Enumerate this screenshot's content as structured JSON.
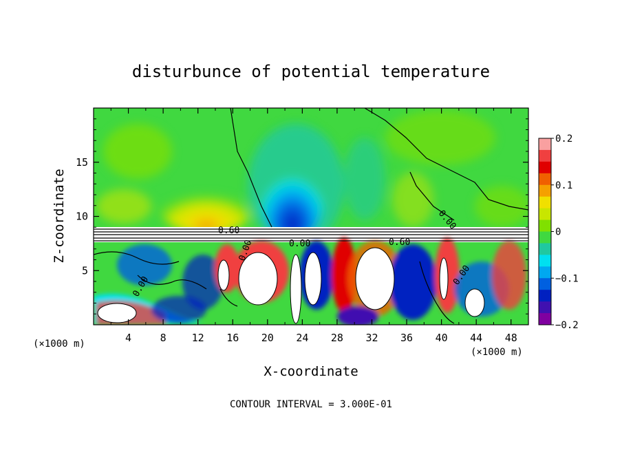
{
  "chart_data": {
    "type": "heatmap",
    "title": "disturbunce of potential temperature",
    "xlabel": "X-coordinate",
    "ylabel": "Z-coordinate",
    "x_unit_left": "(×1000 m)",
    "x_unit_right": "(×1000 m)",
    "xlim": [
      0,
      50
    ],
    "ylim": [
      0,
      20
    ],
    "x_ticks": [
      4,
      8,
      12,
      16,
      20,
      24,
      28,
      32,
      36,
      40,
      44,
      48
    ],
    "y_ticks": [
      5,
      10,
      15
    ],
    "colorbar": {
      "range": [
        -0.2,
        0.2
      ],
      "tick_values": [
        0.2,
        0.1,
        0,
        -0.1,
        -0.2
      ],
      "tick_labels": [
        "0.2",
        "0.1",
        "0",
        "−0.1",
        "−0.2"
      ],
      "colors": [
        "#f9a0a0",
        "#f04040",
        "#e00000",
        "#f06000",
        "#f5a000",
        "#f0e000",
        "#c8e600",
        "#80e000",
        "#40d840",
        "#20c8a0",
        "#00e0f0",
        "#00a8f0",
        "#0060e0",
        "#0020c0",
        "#4010b0",
        "#8000a0"
      ]
    },
    "contour_labels": [
      "0.60",
      "0.00",
      "0.60",
      "0.00",
      "0.00",
      "0.00",
      "0.00"
    ],
    "footer": "CONTOUR INTERVAL = 3.000E-01"
  }
}
